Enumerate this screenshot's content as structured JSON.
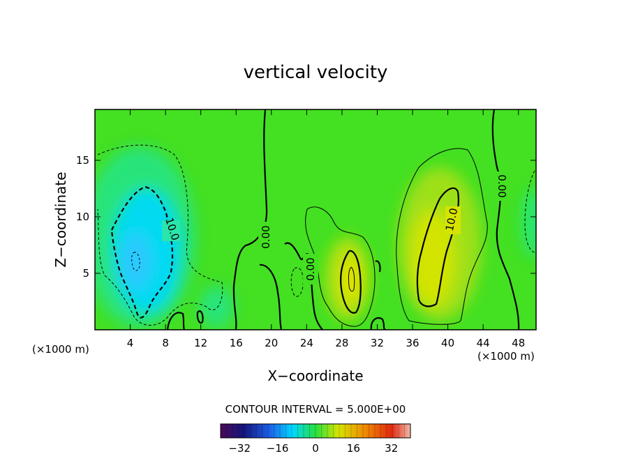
{
  "chart_data": {
    "type": "heatmap",
    "title": "vertical velocity",
    "xlabel": "X−coordinate",
    "ylabel": "Z−coordinate",
    "x_unit": "(×1000 m)",
    "xlim": [
      0,
      50
    ],
    "ylim": [
      0,
      19.5
    ],
    "x_ticks": [
      4,
      8,
      12,
      16,
      20,
      24,
      28,
      32,
      36,
      40,
      44,
      48
    ],
    "y_ticks": [
      5,
      10,
      15
    ],
    "contour_interval_label": "CONTOUR INTERVAL = 5.000E+00",
    "contour_labels": [
      {
        "text": "10.0",
        "x": 8.5,
        "z": 9.0
      },
      {
        "text": "0.00",
        "x": 18.8,
        "z": 8.5
      },
      {
        "text": "0.00",
        "x": 24.5,
        "z": 5.5
      },
      {
        "text": "10.0",
        "x": 40.5,
        "z": 10.0
      },
      {
        "text": "0.00",
        "x": 45.5,
        "z": 13.0
      }
    ],
    "features": [
      {
        "kind": "downdraft",
        "x_center": 5,
        "z_center": 7,
        "min_value": -10
      },
      {
        "kind": "updraft",
        "x_center": 29.5,
        "z_center": 5,
        "max_value": 10
      },
      {
        "kind": "updraft",
        "x_center": 39,
        "z_center": 7,
        "max_value": 10
      }
    ],
    "colorbar": {
      "ticks": [
        -32,
        -16,
        0,
        16,
        32
      ],
      "tick_labels": [
        "−32",
        "−16",
        "0",
        "16",
        "32"
      ],
      "range": [
        -40,
        40
      ]
    },
    "colors": {
      "background_field": "#44e022",
      "negative": "#00d8ff",
      "positive": "#d6e400"
    }
  }
}
